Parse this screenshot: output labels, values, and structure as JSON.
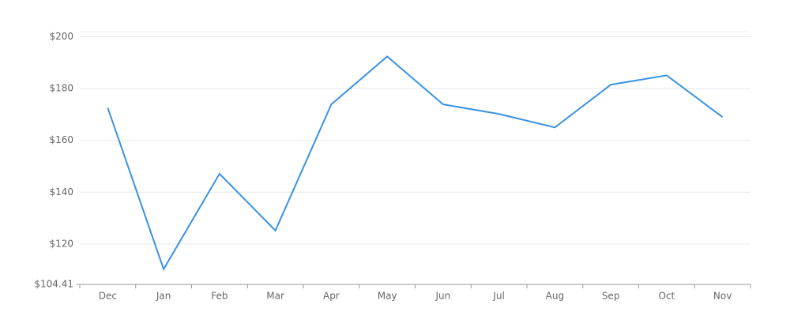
{
  "chart_data": {
    "type": "line",
    "categories": [
      "Dec",
      "Jan",
      "Feb",
      "Mar",
      "Apr",
      "May",
      "Jun",
      "Jul",
      "Aug",
      "Sep",
      "Oct",
      "Nov"
    ],
    "series": [
      {
        "color": "#3a92e4",
        "values": [
          172.6,
          110.3,
          147.1,
          125.2,
          173.9,
          192.4,
          173.9,
          170.2,
          165.0,
          181.5,
          185.1,
          169.0
        ]
      }
    ],
    "ylim": [
      104.41,
      202
    ],
    "yticks": [
      {
        "value": 104.41,
        "label": "$104.41"
      },
      {
        "value": 120,
        "label": "$120"
      },
      {
        "value": 140,
        "label": "$140"
      },
      {
        "value": 160,
        "label": "$160"
      },
      {
        "value": 180,
        "label": "$180"
      },
      {
        "value": 200,
        "label": "$200"
      }
    ],
    "grid": true
  }
}
